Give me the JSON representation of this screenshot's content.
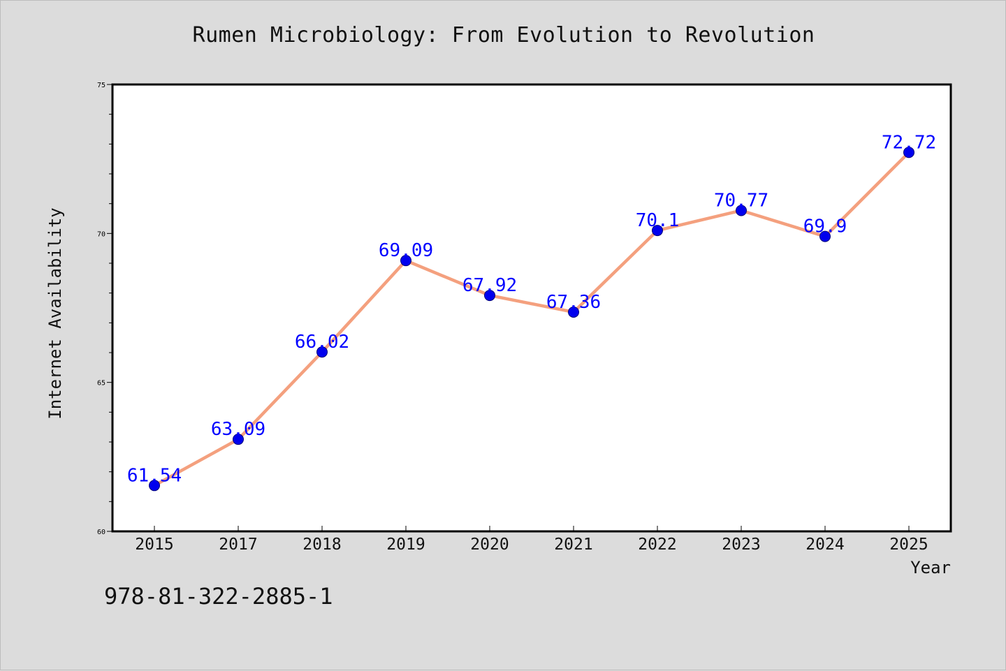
{
  "chart_data": {
    "type": "line",
    "title": "Rumen Microbiology: From Evolution to Revolution",
    "xlabel": "Year",
    "ylabel": "Internet Availability",
    "categories": [
      "2015",
      "2017",
      "2018",
      "2019",
      "2020",
      "2021",
      "2022",
      "2023",
      "2024",
      "2025"
    ],
    "series": [
      {
        "values": [
          61.54,
          63.09,
          66.02,
          69.09,
          67.92,
          67.36,
          70.1,
          70.77,
          69.9,
          72.72
        ],
        "labels": [
          "61.54",
          "63.09",
          "66.02",
          "69.09",
          "67.92",
          "67.36",
          "70.1",
          "70.77",
          "69.9",
          "72.72"
        ]
      }
    ],
    "ylim": [
      60,
      75
    ],
    "yticks": [
      "60",
      "65",
      "70",
      "75"
    ],
    "grid": false,
    "colors": {
      "line": "#f4a07e",
      "marker": "#0000ee",
      "marker_edge": "#00007a",
      "data_label": "#0000ff",
      "background": "#dcdcdc",
      "plot_background": "#ffffff"
    }
  },
  "footer": {
    "isbn": "978-81-322-2885-1"
  }
}
